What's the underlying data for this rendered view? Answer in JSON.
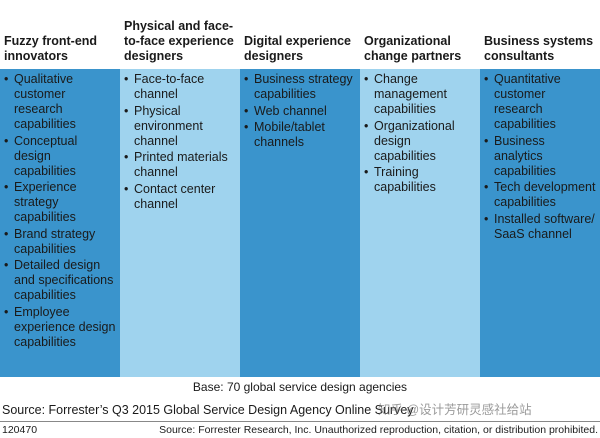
{
  "colors": {
    "fuzzy": "#3a94cc",
    "physical": "#9fd3ee",
    "digital": "#3a94cc",
    "organizational": "#9fd3ee",
    "business": "#3a94cc"
  },
  "columns": [
    {
      "heading": "Fuzzy front-end innovators",
      "items": [
        "Qualitative customer research capabilities",
        "Conceptual design capabilities",
        "Experience strategy capabilities",
        "Brand strategy capabilities",
        "Detailed design and specifications capabilities",
        "Employee experience design capabilities"
      ]
    },
    {
      "heading": "Physical and face-to-face experience designers",
      "items": [
        "Face-to-face channel",
        "Physical environment channel",
        "Printed materials channel",
        "Contact center channel"
      ]
    },
    {
      "heading": "Digital experience designers",
      "items": [
        "Business strategy capabilities",
        "Web channel",
        "Mobile/tablet channels"
      ]
    },
    {
      "heading": "Organizational change partners",
      "items": [
        "Change management capabilities",
        "Organizational design capabilities",
        "Training capabilities"
      ]
    },
    {
      "heading": "Business systems consultants",
      "items": [
        "Quantitative customer research capabilities",
        "Business analytics capabilities",
        "Tech development capabilities",
        "Installed software/ SaaS channel"
      ]
    }
  ],
  "base_note": "Base: 70 global service design agencies",
  "source": "Source: Forrester’s Q3 2015 Global Service Design Agency Online Survey",
  "watermark": "知乎 @设计芳研灵感社给站",
  "figure_id": "120470",
  "credit": "Source: Forrester Research, Inc. Unauthorized reproduction, citation, or distribution prohibited."
}
